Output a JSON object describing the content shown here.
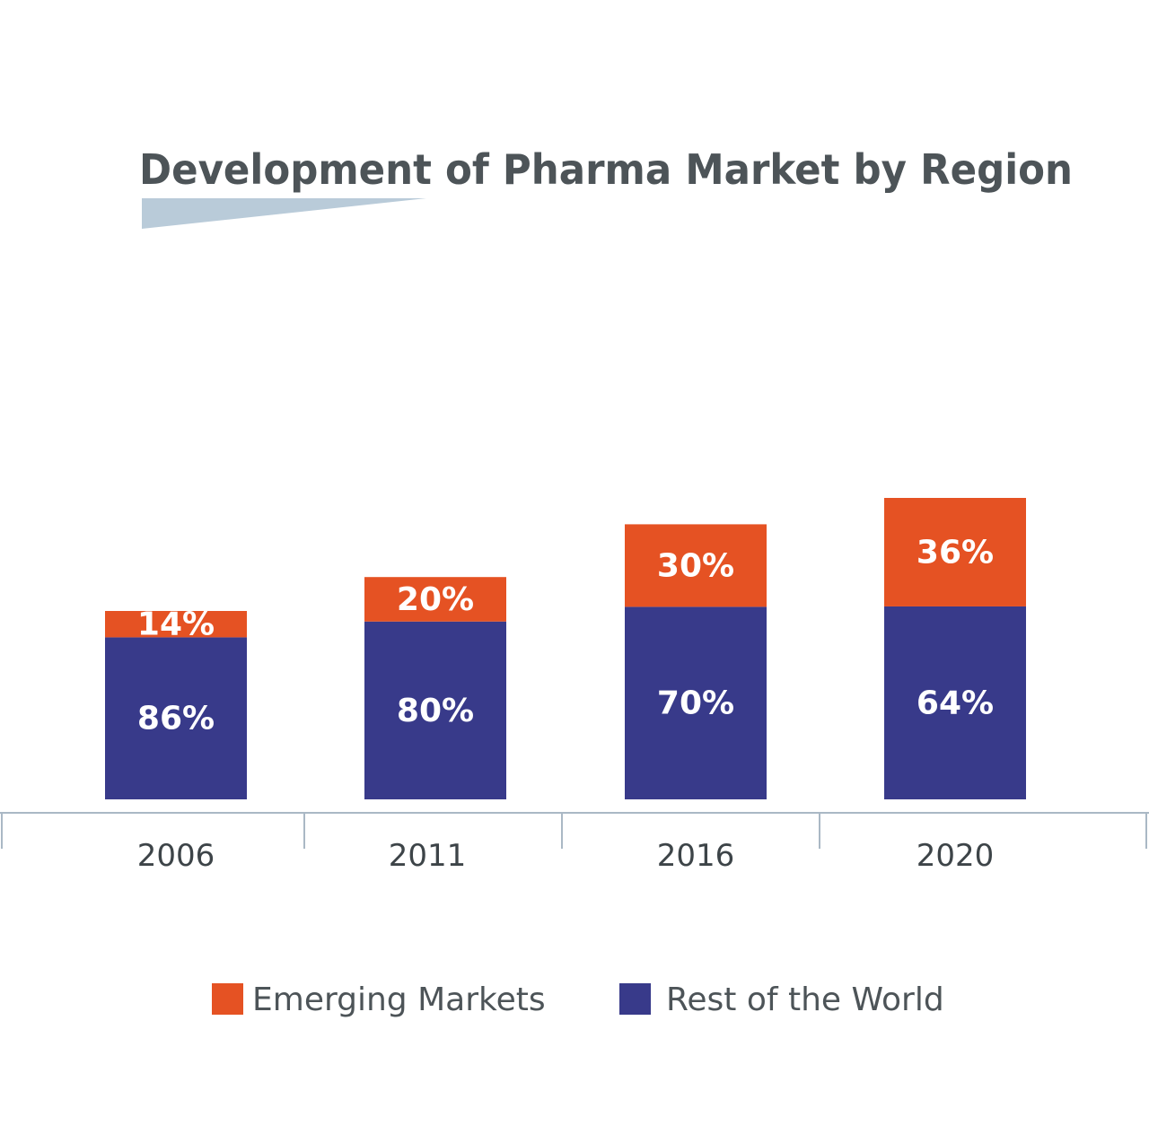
{
  "chart_data": {
    "type": "bar",
    "stacked": true,
    "title": "Development of Pharma Market by Region",
    "xlabel": "",
    "ylabel": "",
    "categories": [
      "2006",
      "2011",
      "2016",
      "2020"
    ],
    "series": [
      {
        "name": "Rest of the World",
        "values": [
          86,
          80,
          70,
          64
        ],
        "labels": [
          "86%",
          "80%",
          "70%",
          "64%"
        ]
      },
      {
        "name": "Emerging Markets",
        "values": [
          14,
          20,
          30,
          36
        ],
        "labels": [
          "14%",
          "20%",
          "30%",
          "36%"
        ]
      }
    ],
    "relative_totals": [
      100,
      118,
      146,
      160
    ],
    "grid": false,
    "legend_position": "bottom",
    "legend": [
      {
        "name": "Emerging Markets",
        "color": "#e55223"
      },
      {
        "name": "Rest of the World",
        "color": "#383a8a"
      }
    ]
  },
  "colors": {
    "emerging": "#e55223",
    "rest": "#383a8a",
    "title": "#4d5458",
    "axis": "#aab8c5",
    "accent": "#b9cbd9",
    "label_text": "#ffffff",
    "tick_text": "#3d4448"
  }
}
